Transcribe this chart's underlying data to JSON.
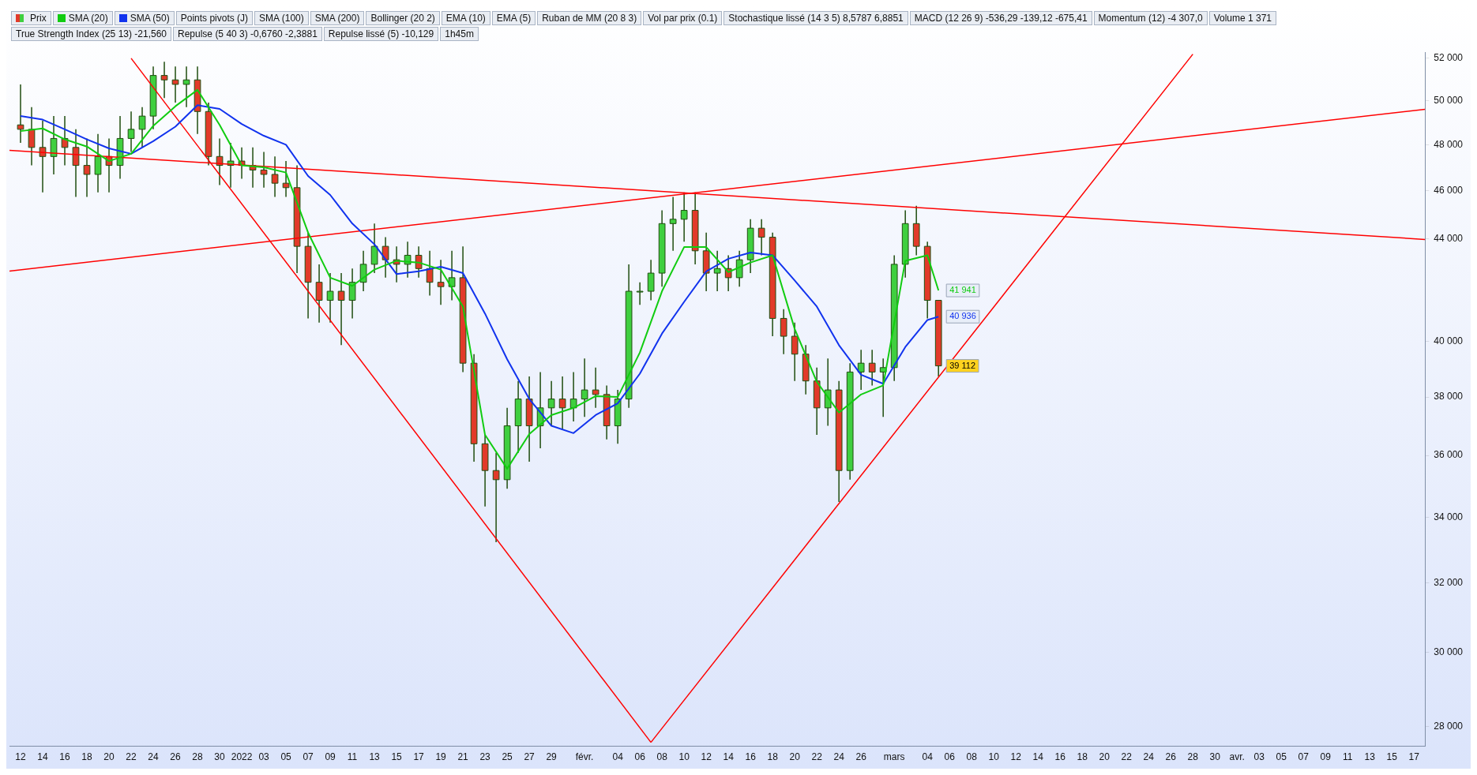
{
  "chart_data": {
    "type": "candlestick",
    "legend": "top left",
    "log": "y",
    "xlim": [
      "2021-12-11",
      "2022-04-18"
    ],
    "xticks": [
      {
        "value": "2021-12-12",
        "label": "12"
      },
      {
        "value": "2021-12-14",
        "label": "14"
      },
      {
        "value": "2021-12-16",
        "label": "16"
      },
      {
        "value": "2021-12-18",
        "label": "18"
      },
      {
        "value": "2021-12-20",
        "label": "20"
      },
      {
        "value": "2021-12-22",
        "label": "22"
      },
      {
        "value": "2021-12-24",
        "label": "24"
      },
      {
        "value": "2021-12-26",
        "label": "26"
      },
      {
        "value": "2021-12-28",
        "label": "28"
      },
      {
        "value": "2021-12-30",
        "label": "30"
      },
      {
        "value": "2022-01-01",
        "label": "2022"
      },
      {
        "value": "2022-01-03",
        "label": "03"
      },
      {
        "value": "2022-01-05",
        "label": "05"
      },
      {
        "value": "2022-01-07",
        "label": "07"
      },
      {
        "value": "2022-01-09",
        "label": "09"
      },
      {
        "value": "2022-01-11",
        "label": "11"
      },
      {
        "value": "2022-01-13",
        "label": "13"
      },
      {
        "value": "2022-01-15",
        "label": "15"
      },
      {
        "value": "2022-01-17",
        "label": "17"
      },
      {
        "value": "2022-01-19",
        "label": "19"
      },
      {
        "value": "2022-01-21",
        "label": "21"
      },
      {
        "value": "2022-01-23",
        "label": "23"
      },
      {
        "value": "2022-01-25",
        "label": "25"
      },
      {
        "value": "2022-01-27",
        "label": "27"
      },
      {
        "value": "2022-01-29",
        "label": "29"
      },
      {
        "value": "2022-02-01",
        "label": "févr."
      },
      {
        "value": "2022-02-04",
        "label": "04"
      },
      {
        "value": "2022-02-06",
        "label": "06"
      },
      {
        "value": "2022-02-08",
        "label": "08"
      },
      {
        "value": "2022-02-10",
        "label": "10"
      },
      {
        "value": "2022-02-12",
        "label": "12"
      },
      {
        "value": "2022-02-14",
        "label": "14"
      },
      {
        "value": "2022-02-16",
        "label": "16"
      },
      {
        "value": "2022-02-18",
        "label": "18"
      },
      {
        "value": "2022-02-20",
        "label": "20"
      },
      {
        "value": "2022-02-22",
        "label": "22"
      },
      {
        "value": "2022-02-24",
        "label": "24"
      },
      {
        "value": "2022-02-26",
        "label": "26"
      },
      {
        "value": "2022-03-01",
        "label": "mars"
      },
      {
        "value": "2022-03-04",
        "label": "04"
      },
      {
        "value": "2022-03-06",
        "label": "06"
      },
      {
        "value": "2022-03-08",
        "label": "08"
      },
      {
        "value": "2022-03-10",
        "label": "10"
      },
      {
        "value": "2022-03-12",
        "label": "12"
      },
      {
        "value": "2022-03-14",
        "label": "14"
      },
      {
        "value": "2022-03-16",
        "label": "16"
      },
      {
        "value": "2022-03-18",
        "label": "18"
      },
      {
        "value": "2022-03-20",
        "label": "20"
      },
      {
        "value": "2022-03-22",
        "label": "22"
      },
      {
        "value": "2022-03-24",
        "label": "24"
      },
      {
        "value": "2022-03-26",
        "label": "26"
      },
      {
        "value": "2022-03-28",
        "label": "28"
      },
      {
        "value": "2022-03-30",
        "label": "30"
      },
      {
        "value": "2022-04-01",
        "label": "avr."
      },
      {
        "value": "2022-04-03",
        "label": "03"
      },
      {
        "value": "2022-04-05",
        "label": "05"
      },
      {
        "value": "2022-04-07",
        "label": "07"
      },
      {
        "value": "2022-04-09",
        "label": "09"
      },
      {
        "value": "2022-04-11",
        "label": "11"
      },
      {
        "value": "2022-04-13",
        "label": "13"
      },
      {
        "value": "2022-04-15",
        "label": "15"
      },
      {
        "value": "2022-04-17",
        "label": "17"
      }
    ],
    "ylim": [
      27500,
      52300
    ],
    "yticks": [
      {
        "value": 28000,
        "label": "28 000"
      },
      {
        "value": 30000,
        "label": "30 000"
      },
      {
        "value": 32000,
        "label": "32 000"
      },
      {
        "value": 34000,
        "label": "34 000"
      },
      {
        "value": 36000,
        "label": "36 000"
      },
      {
        "value": 38000,
        "label": "38 000"
      },
      {
        "value": 40000,
        "label": "40 000"
      },
      {
        "value": 44000,
        "label": "44 000"
      },
      {
        "value": 46000,
        "label": "46 000"
      },
      {
        "value": 48000,
        "label": "48 000"
      },
      {
        "value": 50000,
        "label": "50 000"
      },
      {
        "value": 52000,
        "label": "52 000"
      }
    ],
    "annotations": [
      "Points pivots (J)",
      "SMA (100)",
      "SMA (200)",
      "Bollinger (20 2)",
      "EMA (10)",
      "EMA (5)",
      "Ruban de MM (20 8 3)",
      "Vol par prix (0.1)",
      "Stochastique lissé (14 3 5) 8,5787 6,8851",
      "MACD (12 26 9) -536,29 -139,12 -675,41",
      "Momentum (12) -4 307,0",
      "Volume 1 371",
      "True Strength Index (25 13) -21,560",
      "Repulse (5 40 3) -0,6760 -2,3881",
      "Repulse lissé (5) -10,129",
      "1h45m",
      {
        "text": "41 941",
        "x": "2022-03-05",
        "y": 41941
      },
      {
        "text": "40 936",
        "x": "2022-03-05",
        "y": 40936
      },
      {
        "text": "39 112",
        "x": "2022-03-05",
        "y": 39112
      }
    ],
    "series": [
      {
        "name": "Prix",
        "type": "candlestick",
        "color": "#1f4d0f",
        "colors": [
          "#e23a2a",
          "#e23a2a",
          "#e23a2a",
          "#3fcf3f",
          "#e23a2a",
          "#e23a2a",
          "#e23a2a",
          "#3fcf3f",
          "#e23a2a",
          "#3fcf3f",
          "#3fcf3f",
          "#3fcf3f",
          "#3fcf3f",
          "#e23a2a",
          "#e23a2a",
          "#3fcf3f",
          "#e23a2a",
          "#e23a2a",
          "#e23a2a",
          "#3fcf3f",
          "#e23a2a",
          "#e23a2a",
          "#e23a2a",
          "#e23a2a",
          "#e23a2a",
          "#e23a2a",
          "#e23a2a",
          "#e23a2a",
          "#3fcf3f",
          "#e23a2a",
          "#3fcf3f",
          "#3fcf3f",
          "#3fcf3f",
          "#e23a2a",
          "#e23a2a",
          "#3fcf3f",
          "#e23a2a",
          "#e23a2a",
          "#e23a2a",
          "#3fcf3f",
          "#e23a2a",
          "#e23a2a",
          "#e23a2a",
          "#e23a2a",
          "#3fcf3f",
          "#3fcf3f",
          "#e23a2a",
          "#3fcf3f",
          "#3fcf3f",
          "#e23a2a",
          "#3fcf3f",
          "#3fcf3f",
          "#e23a2a",
          "#e23a2a",
          "#3fcf3f",
          "#3fcf3f",
          "#3fcf3f",
          "#3fcf3f",
          "#3fcf3f",
          "#3fcf3f",
          "#3fcf3f",
          "#e23a2a",
          "#e23a2a",
          "#3fcf3f",
          "#e23a2a",
          "#3fcf3f",
          "#3fcf3f",
          "#e23a2a",
          "#e23a2a",
          "#e23a2a",
          "#e23a2a",
          "#e23a2a",
          "#e23a2a",
          "#3fcf3f",
          "#e23a2a",
          "#3fcf3f",
          "#3fcf3f",
          "#e23a2a",
          "#3fcf3f",
          "#3fcf3f",
          "#3fcf3f",
          "#e23a2a",
          "#e23a2a",
          "#e23a2a"
        ],
        "x": [
          "2021-12-12",
          "2021-12-13",
          "2021-12-14",
          "2021-12-15",
          "2021-12-16",
          "2021-12-17",
          "2021-12-18",
          "2021-12-19",
          "2021-12-20",
          "2021-12-21",
          "2021-12-22",
          "2021-12-23",
          "2021-12-24",
          "2021-12-25",
          "2021-12-26",
          "2021-12-27",
          "2021-12-28",
          "2021-12-29",
          "2021-12-30",
          "2021-12-31",
          "2022-01-01",
          "2022-01-02",
          "2022-01-03",
          "2022-01-04",
          "2022-01-05",
          "2022-01-06",
          "2022-01-07",
          "2022-01-08",
          "2022-01-09",
          "2022-01-10",
          "2022-01-11",
          "2022-01-12",
          "2022-01-13",
          "2022-01-14",
          "2022-01-15",
          "2022-01-16",
          "2022-01-17",
          "2022-01-18",
          "2022-01-19",
          "2022-01-20",
          "2022-01-21",
          "2022-01-22",
          "2022-01-23",
          "2022-01-24",
          "2022-01-25",
          "2022-01-26",
          "2022-01-27",
          "2022-01-28",
          "2022-01-29",
          "2022-01-30",
          "2022-01-31",
          "2022-02-01",
          "2022-02-02",
          "2022-02-03",
          "2022-02-04",
          "2022-02-05",
          "2022-02-06",
          "2022-02-07",
          "2022-02-08",
          "2022-02-09",
          "2022-02-10",
          "2022-02-11",
          "2022-02-12",
          "2022-02-13",
          "2022-02-14",
          "2022-02-15",
          "2022-02-16",
          "2022-02-17",
          "2022-02-18",
          "2022-02-19",
          "2022-02-20",
          "2022-02-21",
          "2022-02-22",
          "2022-02-23",
          "2022-02-24",
          "2022-02-25",
          "2022-02-26",
          "2022-02-27",
          "2022-02-28",
          "2022-03-01",
          "2022-03-02",
          "2022-03-03",
          "2022-03-04",
          "2022-03-05"
        ],
        "ohlc": [
          [
            48890,
            50760,
            48080,
            48690
          ],
          [
            48690,
            49700,
            47090,
            47880
          ],
          [
            47880,
            49090,
            45930,
            47480
          ],
          [
            47480,
            49290,
            46700,
            48280
          ],
          [
            48280,
            49290,
            47090,
            47880
          ],
          [
            47880,
            48690,
            45740,
            47090
          ],
          [
            47090,
            48280,
            45740,
            46700
          ],
          [
            46700,
            48480,
            45930,
            47480
          ],
          [
            47480,
            48280,
            45930,
            47090
          ],
          [
            47090,
            49290,
            46510,
            48280
          ],
          [
            48280,
            49500,
            47680,
            48690
          ],
          [
            48690,
            49700,
            47880,
            49290
          ],
          [
            49290,
            51610,
            48690,
            51180
          ],
          [
            51180,
            51830,
            50120,
            50970
          ],
          [
            50970,
            51610,
            49910,
            50760
          ],
          [
            50760,
            51610,
            49700,
            50970
          ],
          [
            50970,
            51610,
            48480,
            49500
          ],
          [
            49500,
            49910,
            47090,
            47480
          ],
          [
            47480,
            48280,
            46240,
            47090
          ],
          [
            47090,
            48080,
            46130,
            47280
          ],
          [
            47280,
            47880,
            46510,
            47090
          ],
          [
            47090,
            47880,
            46130,
            46890
          ],
          [
            46890,
            47680,
            46130,
            46700
          ],
          [
            46700,
            47480,
            45740,
            46320
          ],
          [
            46320,
            47280,
            45740,
            46130
          ],
          [
            46130,
            47090,
            42620,
            43690
          ],
          [
            43690,
            44250,
            40870,
            42260
          ],
          [
            42260,
            42970,
            40710,
            41560
          ],
          [
            41560,
            42620,
            40710,
            41910
          ],
          [
            41910,
            42620,
            39870,
            41560
          ],
          [
            41560,
            42800,
            40870,
            42260
          ],
          [
            42260,
            43510,
            41910,
            42970
          ],
          [
            42970,
            44620,
            42620,
            43690
          ],
          [
            43690,
            44060,
            42440,
            43150
          ],
          [
            43150,
            43690,
            42260,
            42970
          ],
          [
            42970,
            43880,
            42440,
            43330
          ],
          [
            43330,
            43690,
            42440,
            42800
          ],
          [
            42800,
            43510,
            41740,
            42260
          ],
          [
            42260,
            43150,
            41390,
            42090
          ],
          [
            42090,
            43510,
            41560,
            42440
          ],
          [
            42440,
            43690,
            38890,
            39210
          ],
          [
            39210,
            39540,
            35790,
            36390
          ],
          [
            36390,
            36690,
            34340,
            35500
          ],
          [
            35500,
            36090,
            33220,
            35200
          ],
          [
            35200,
            37620,
            34910,
            37000
          ],
          [
            37000,
            38570,
            36090,
            37930
          ],
          [
            37930,
            38730,
            35790,
            37000
          ],
          [
            37000,
            38890,
            36240,
            37620
          ],
          [
            37620,
            38570,
            37000,
            37930
          ],
          [
            37930,
            38730,
            36850,
            37620
          ],
          [
            37620,
            38890,
            37150,
            37930
          ],
          [
            37930,
            39380,
            37310,
            38250
          ],
          [
            38250,
            39050,
            37620,
            38090
          ],
          [
            38090,
            38410,
            36540,
            37000
          ],
          [
            37000,
            38250,
            36390,
            37930
          ],
          [
            37930,
            42970,
            37620,
            41910
          ],
          [
            41910,
            42260,
            41390,
            41910
          ],
          [
            41910,
            43150,
            41560,
            42620
          ],
          [
            42620,
            45170,
            42090,
            44620
          ],
          [
            44620,
            45740,
            43510,
            44800
          ],
          [
            44800,
            45930,
            43880,
            45170
          ],
          [
            45170,
            45930,
            42970,
            43510
          ],
          [
            43510,
            44250,
            41910,
            42620
          ],
          [
            42620,
            43510,
            41910,
            42800
          ],
          [
            42800,
            43330,
            41910,
            42440
          ],
          [
            42440,
            43510,
            42090,
            43150
          ],
          [
            43150,
            44800,
            42620,
            44430
          ],
          [
            44430,
            44800,
            43330,
            44060
          ],
          [
            44060,
            44250,
            40200,
            40870
          ],
          [
            40870,
            41220,
            39540,
            40200
          ],
          [
            40200,
            40710,
            38570,
            39540
          ],
          [
            39540,
            39870,
            38090,
            38570
          ],
          [
            38570,
            39050,
            36690,
            37620
          ],
          [
            37620,
            39380,
            37000,
            38250
          ],
          [
            38250,
            38570,
            34480,
            35500
          ],
          [
            35500,
            39210,
            35200,
            38890
          ],
          [
            38890,
            39700,
            38250,
            39210
          ],
          [
            39210,
            39700,
            38410,
            38890
          ],
          [
            38890,
            39380,
            37310,
            39050
          ],
          [
            39050,
            43330,
            38570,
            42970
          ],
          [
            42970,
            45170,
            42440,
            44620
          ],
          [
            44620,
            45360,
            43330,
            43690
          ],
          [
            43690,
            43880,
            40870,
            41560
          ],
          [
            41560,
            41560,
            38730,
            39112
          ]
        ]
      },
      {
        "name": "SMA (20)",
        "type": "line",
        "color": "#11cc11",
        "x": [
          "2021-12-12",
          "2021-12-14",
          "2021-12-16",
          "2021-12-18",
          "2021-12-20",
          "2021-12-22",
          "2021-12-24",
          "2021-12-26",
          "2021-12-28",
          "2021-12-30",
          "2022-01-01",
          "2022-01-03",
          "2022-01-05",
          "2022-01-07",
          "2022-01-09",
          "2022-01-11",
          "2022-01-13",
          "2022-01-15",
          "2022-01-17",
          "2022-01-19",
          "2022-01-21",
          "2022-01-23",
          "2022-01-25",
          "2022-01-27",
          "2022-01-29",
          "2022-01-31",
          "2022-02-02",
          "2022-02-04",
          "2022-02-06",
          "2022-02-08",
          "2022-02-10",
          "2022-02-12",
          "2022-02-14",
          "2022-02-16",
          "2022-02-18",
          "2022-02-20",
          "2022-02-22",
          "2022-02-24",
          "2022-02-26",
          "2022-02-28",
          "2022-03-02",
          "2022-03-04",
          "2022-03-05"
        ],
        "values": [
          48610,
          48730,
          48240,
          47920,
          47280,
          47600,
          48850,
          49740,
          50500,
          48890,
          47090,
          47010,
          46780,
          44250,
          42440,
          42120,
          42760,
          43110,
          43040,
          42760,
          41320,
          36690,
          35560,
          36720,
          37370,
          37620,
          38030,
          38000,
          39600,
          41910,
          43660,
          43660,
          42660,
          43040,
          43330,
          40470,
          38540,
          37460,
          38090,
          38410,
          43110,
          43330,
          41941
        ]
      },
      {
        "name": "SMA (50)",
        "type": "line",
        "color": "#1133ee",
        "x": [
          "2021-12-12",
          "2021-12-14",
          "2021-12-16",
          "2021-12-18",
          "2021-12-20",
          "2021-12-22",
          "2021-12-24",
          "2021-12-26",
          "2021-12-28",
          "2021-12-30",
          "2022-01-01",
          "2022-01-03",
          "2022-01-05",
          "2022-01-07",
          "2022-01-09",
          "2022-01-11",
          "2022-01-13",
          "2022-01-15",
          "2022-01-17",
          "2022-01-19",
          "2022-01-21",
          "2022-01-23",
          "2022-01-25",
          "2022-01-27",
          "2022-01-29",
          "2022-01-31",
          "2022-02-02",
          "2022-02-04",
          "2022-02-06",
          "2022-02-08",
          "2022-02-10",
          "2022-02-12",
          "2022-02-14",
          "2022-02-16",
          "2022-02-18",
          "2022-02-20",
          "2022-02-22",
          "2022-02-24",
          "2022-02-26",
          "2022-02-28",
          "2022-03-02",
          "2022-03-04",
          "2022-03-05"
        ],
        "values": [
          49290,
          49130,
          48690,
          48240,
          47840,
          47600,
          48160,
          48810,
          49790,
          49620,
          48930,
          48400,
          48000,
          46630,
          45820,
          44620,
          43770,
          42580,
          42690,
          42870,
          42620,
          41050,
          39350,
          37930,
          37000,
          36750,
          37370,
          37780,
          38830,
          40300,
          41500,
          42690,
          43190,
          43440,
          43330,
          42330,
          41320,
          39870,
          38790,
          38470,
          39800,
          40810,
          40936
        ]
      },
      {
        "type": "line",
        "color": "#ff0000",
        "x": [
          "2021-12-22",
          "2022-02-07"
        ],
        "values": [
          52000,
          27600
        ]
      },
      {
        "type": "line",
        "color": "#ff0000",
        "x": [
          "2022-02-07",
          "2022-03-28"
        ],
        "values": [
          27600,
          52200
        ]
      },
      {
        "type": "line",
        "color": "#ff0000",
        "x": [
          "2021-12-11",
          "2022-04-18"
        ],
        "values": [
          47750,
          43970
        ]
      },
      {
        "type": "line",
        "color": "#ff0000",
        "x": [
          "2021-12-11",
          "2022-04-18"
        ],
        "values": [
          42700,
          49600
        ]
      }
    ]
  }
}
